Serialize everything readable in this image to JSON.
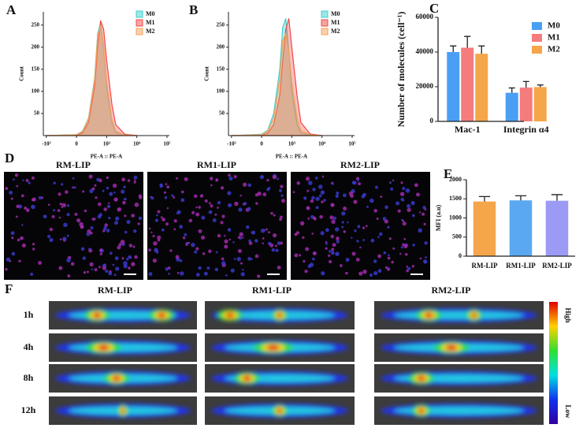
{
  "chart_data": [
    {
      "type": "area",
      "label": "A",
      "xlabel": "PE-A :: PE-A",
      "ylabel": "Count",
      "xscale": "biexponential",
      "x": [
        -1000,
        0,
        200,
        400,
        600,
        700,
        800,
        900,
        1000,
        1500,
        2000,
        4000,
        10000
      ],
      "series": [
        {
          "name": "M0",
          "color": "#3ecfcf",
          "values": [
            0,
            2,
            10,
            40,
            130,
            230,
            255,
            200,
            110,
            30,
            8,
            1,
            0
          ]
        },
        {
          "name": "M1",
          "color": "#f04848",
          "values": [
            0,
            1,
            6,
            30,
            110,
            200,
            260,
            240,
            170,
            70,
            25,
            3,
            0
          ]
        },
        {
          "name": "M2",
          "color": "#f5a25a",
          "values": [
            0,
            2,
            9,
            38,
            125,
            225,
            250,
            205,
            120,
            35,
            10,
            1,
            0
          ]
        }
      ],
      "xlim": [
        -1100,
        120000
      ],
      "xticks": [
        {
          "value": -1000,
          "label": "-10³"
        },
        0,
        {
          "value": 1000,
          "label": "10³"
        },
        {
          "value": 10000,
          "label": "10⁴"
        },
        {
          "value": 100000,
          "label": "10⁵"
        }
      ],
      "ylim": [
        0,
        280
      ],
      "yticks": [
        50,
        100,
        150,
        200,
        250
      ]
    },
    {
      "type": "area",
      "label": "B",
      "xlabel": "PE-A :: PE-A",
      "ylabel": "Count",
      "xscale": "biexponential",
      "x": [
        -1000,
        0,
        200,
        400,
        600,
        700,
        800,
        900,
        1000,
        1500,
        2000,
        4000,
        10000
      ],
      "series": [
        {
          "name": "M0",
          "color": "#3ecfcf",
          "values": [
            0,
            3,
            12,
            50,
            150,
            245,
            265,
            190,
            100,
            25,
            6,
            1,
            0
          ]
        },
        {
          "name": "M1",
          "color": "#f04848",
          "values": [
            0,
            1,
            5,
            25,
            90,
            170,
            240,
            265,
            200,
            90,
            30,
            4,
            0
          ]
        },
        {
          "name": "M2",
          "color": "#f5a25a",
          "values": [
            0,
            2,
            10,
            40,
            130,
            215,
            230,
            190,
            120,
            40,
            12,
            2,
            0
          ]
        }
      ],
      "xlim": [
        -1100,
        120000
      ],
      "xticks": [
        {
          "value": -1000,
          "label": "-10³"
        },
        0,
        {
          "value": 1000,
          "label": "10³"
        },
        {
          "value": 10000,
          "label": "10⁴"
        },
        {
          "value": 100000,
          "label": "10⁵"
        }
      ],
      "ylim": [
        0,
        280
      ],
      "yticks": [
        50,
        100,
        150,
        200,
        250
      ]
    },
    {
      "type": "bar",
      "label": "C",
      "ylabel": "Number of molecules (cell⁻¹)",
      "categories": [
        "Mac-1",
        "Integrin α4"
      ],
      "series": [
        {
          "name": "M0",
          "color": "#4a9ff5",
          "values": [
            40000,
            16500
          ],
          "errors": [
            3500,
            2800
          ]
        },
        {
          "name": "M1",
          "color": "#f47c7c",
          "values": [
            42500,
            19500
          ],
          "errors": [
            6500,
            3500
          ]
        },
        {
          "name": "M2",
          "color": "#f5a54a",
          "values": [
            39000,
            19800
          ],
          "errors": [
            4500,
            1200
          ]
        }
      ],
      "ylim": [
        0,
        60000
      ],
      "yticks": [
        0,
        20000,
        40000,
        60000
      ]
    },
    {
      "type": "bar",
      "label": "E",
      "ylabel": "MFI (a.u)",
      "categories": [
        "RM-LIP",
        "RM1-LIP",
        "RM2-LIP"
      ],
      "values": [
        1430,
        1460,
        1450
      ],
      "errors": [
        130,
        120,
        160
      ],
      "colors": [
        "#f5a54a",
        "#5aa9f0",
        "#9b9bf5"
      ],
      "ylim": [
        0,
        2000
      ],
      "yticks": [
        0,
        500,
        1000,
        1500,
        2000
      ]
    }
  ],
  "panel_d": {
    "label": "D",
    "images": [
      "RM-LIP",
      "RM1-LIP",
      "RM2-LIP"
    ]
  },
  "panel_f": {
    "label": "F",
    "columns": [
      "RM-LIP",
      "RM1-LIP",
      "RM2-LIP"
    ],
    "rows": [
      "1h",
      "4h",
      "8h",
      "12h"
    ],
    "colorbar": {
      "high": "High",
      "low": "Low"
    }
  }
}
